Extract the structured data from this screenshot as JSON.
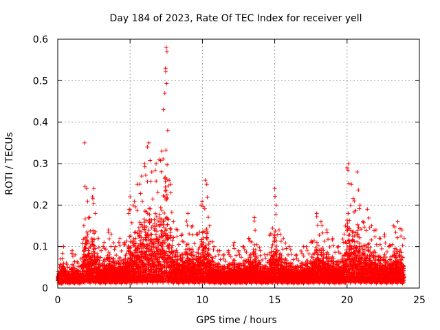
{
  "chart_data": {
    "type": "scatter",
    "title": "Day 184 of 2023, Rate Of TEC Index for receiver yell",
    "xlabel": "GPS time / hours",
    "ylabel": "ROTI / TECUs",
    "xlim": [
      0,
      25
    ],
    "ylim": [
      0,
      0.6
    ],
    "x_ticks": [
      "0",
      "5",
      "10",
      "15",
      "20",
      "25"
    ],
    "y_ticks": [
      "0",
      "0.1",
      "0.2",
      "0.3",
      "0.4",
      "0.5",
      "0.6"
    ],
    "grid": true,
    "marker": "plus",
    "color": "#ff0000",
    "series": [
      {
        "name": "ROTI",
        "x": [
          0.0,
          0.2,
          0.4,
          0.6,
          0.8,
          1.0,
          1.2,
          1.4,
          1.6,
          1.8,
          1.85,
          2.0,
          2.2,
          2.4,
          2.5,
          2.6,
          2.8,
          3.0,
          3.2,
          3.5,
          3.7,
          4.0,
          4.3,
          4.6,
          4.9,
          5.0,
          5.2,
          5.5,
          5.8,
          6.0,
          6.2,
          6.3,
          6.5,
          6.8,
          7.0,
          7.2,
          7.3,
          7.4,
          7.45,
          7.5,
          7.55,
          7.6,
          7.7,
          7.8,
          8.0,
          8.3,
          8.6,
          9.0,
          9.3,
          9.6,
          9.9,
          10.2,
          10.3,
          10.5,
          10.8,
          11.2,
          11.5,
          11.8,
          12.2,
          12.5,
          12.8,
          13.2,
          13.6,
          14.0,
          14.5,
          15.0,
          15.1,
          15.3,
          15.6,
          16.0,
          16.5,
          17.0,
          17.5,
          17.9,
          18.2,
          18.6,
          19.0,
          19.4,
          19.8,
          20.0,
          20.1,
          20.3,
          20.5,
          20.7,
          20.9,
          21.1,
          21.4,
          21.7,
          22.0,
          22.3,
          22.6,
          22.9,
          23.2,
          23.5,
          23.8,
          23.95
        ],
        "y": [
          0.04,
          0.07,
          0.1,
          0.06,
          0.05,
          0.09,
          0.08,
          0.06,
          0.07,
          0.15,
          0.35,
          0.24,
          0.17,
          0.22,
          0.24,
          0.18,
          0.12,
          0.09,
          0.11,
          0.14,
          0.13,
          0.1,
          0.12,
          0.11,
          0.18,
          0.22,
          0.2,
          0.25,
          0.27,
          0.3,
          0.34,
          0.35,
          0.28,
          0.3,
          0.31,
          0.33,
          0.43,
          0.47,
          0.53,
          0.58,
          0.57,
          0.38,
          0.26,
          0.25,
          0.16,
          0.14,
          0.13,
          0.18,
          0.15,
          0.13,
          0.2,
          0.26,
          0.25,
          0.15,
          0.1,
          0.09,
          0.08,
          0.09,
          0.11,
          0.09,
          0.1,
          0.12,
          0.17,
          0.09,
          0.08,
          0.24,
          0.2,
          0.14,
          0.12,
          0.1,
          0.08,
          0.1,
          0.11,
          0.18,
          0.16,
          0.14,
          0.12,
          0.1,
          0.13,
          0.29,
          0.3,
          0.25,
          0.21,
          0.28,
          0.2,
          0.16,
          0.19,
          0.15,
          0.14,
          0.12,
          0.13,
          0.1,
          0.15,
          0.16,
          0.14,
          0.12
        ],
        "baseline_min": 0.01
      }
    ]
  }
}
